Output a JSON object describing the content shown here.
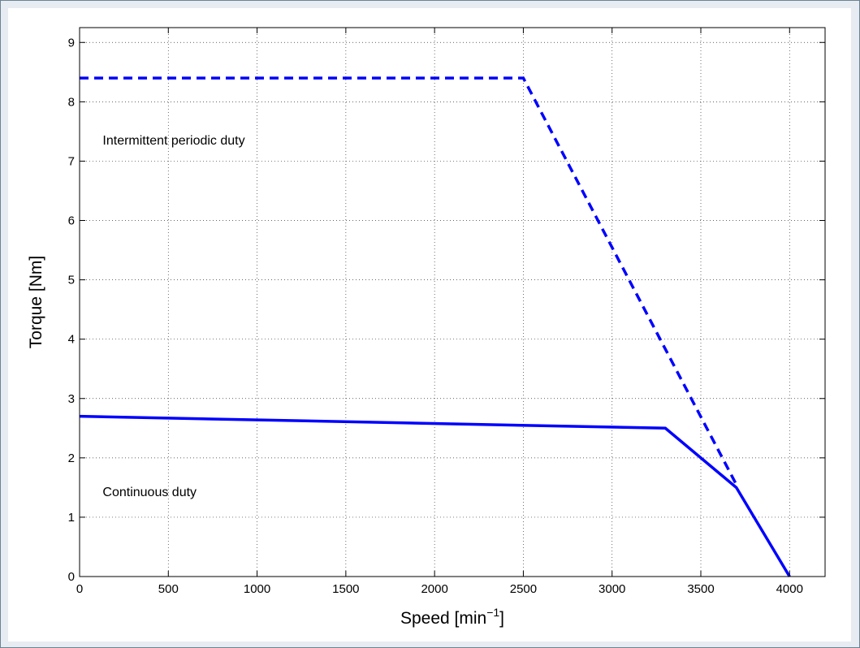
{
  "chart_data": {
    "type": "line",
    "title": "",
    "xlabel": "Speed [min",
    "xlabel_superscript": "−1",
    "xlabel_suffix": "]",
    "ylabel": "Torque [Nm]",
    "xlim": [
      0,
      4200
    ],
    "ylim": [
      0,
      9.25
    ],
    "xticks": [
      0,
      500,
      1000,
      1500,
      2000,
      2500,
      3000,
      3500,
      4000
    ],
    "yticks": [
      0,
      1,
      2,
      3,
      4,
      5,
      6,
      7,
      8,
      9
    ],
    "grid": true,
    "series": [
      {
        "style": "solid",
        "color": "#0000ff",
        "x": [
          0,
          3300,
          3700,
          4000
        ],
        "y": [
          2.7,
          2.5,
          1.5,
          0
        ]
      },
      {
        "style": "dashed",
        "color": "#0000ff",
        "x": [
          0,
          2500,
          3700
        ],
        "y": [
          8.4,
          8.4,
          1.55
        ]
      }
    ],
    "annotations": [
      {
        "text": "Intermittent periodic duty",
        "x": 130,
        "y": 7.35
      },
      {
        "text": "Continuous duty",
        "x": 130,
        "y": 1.42
      }
    ]
  }
}
